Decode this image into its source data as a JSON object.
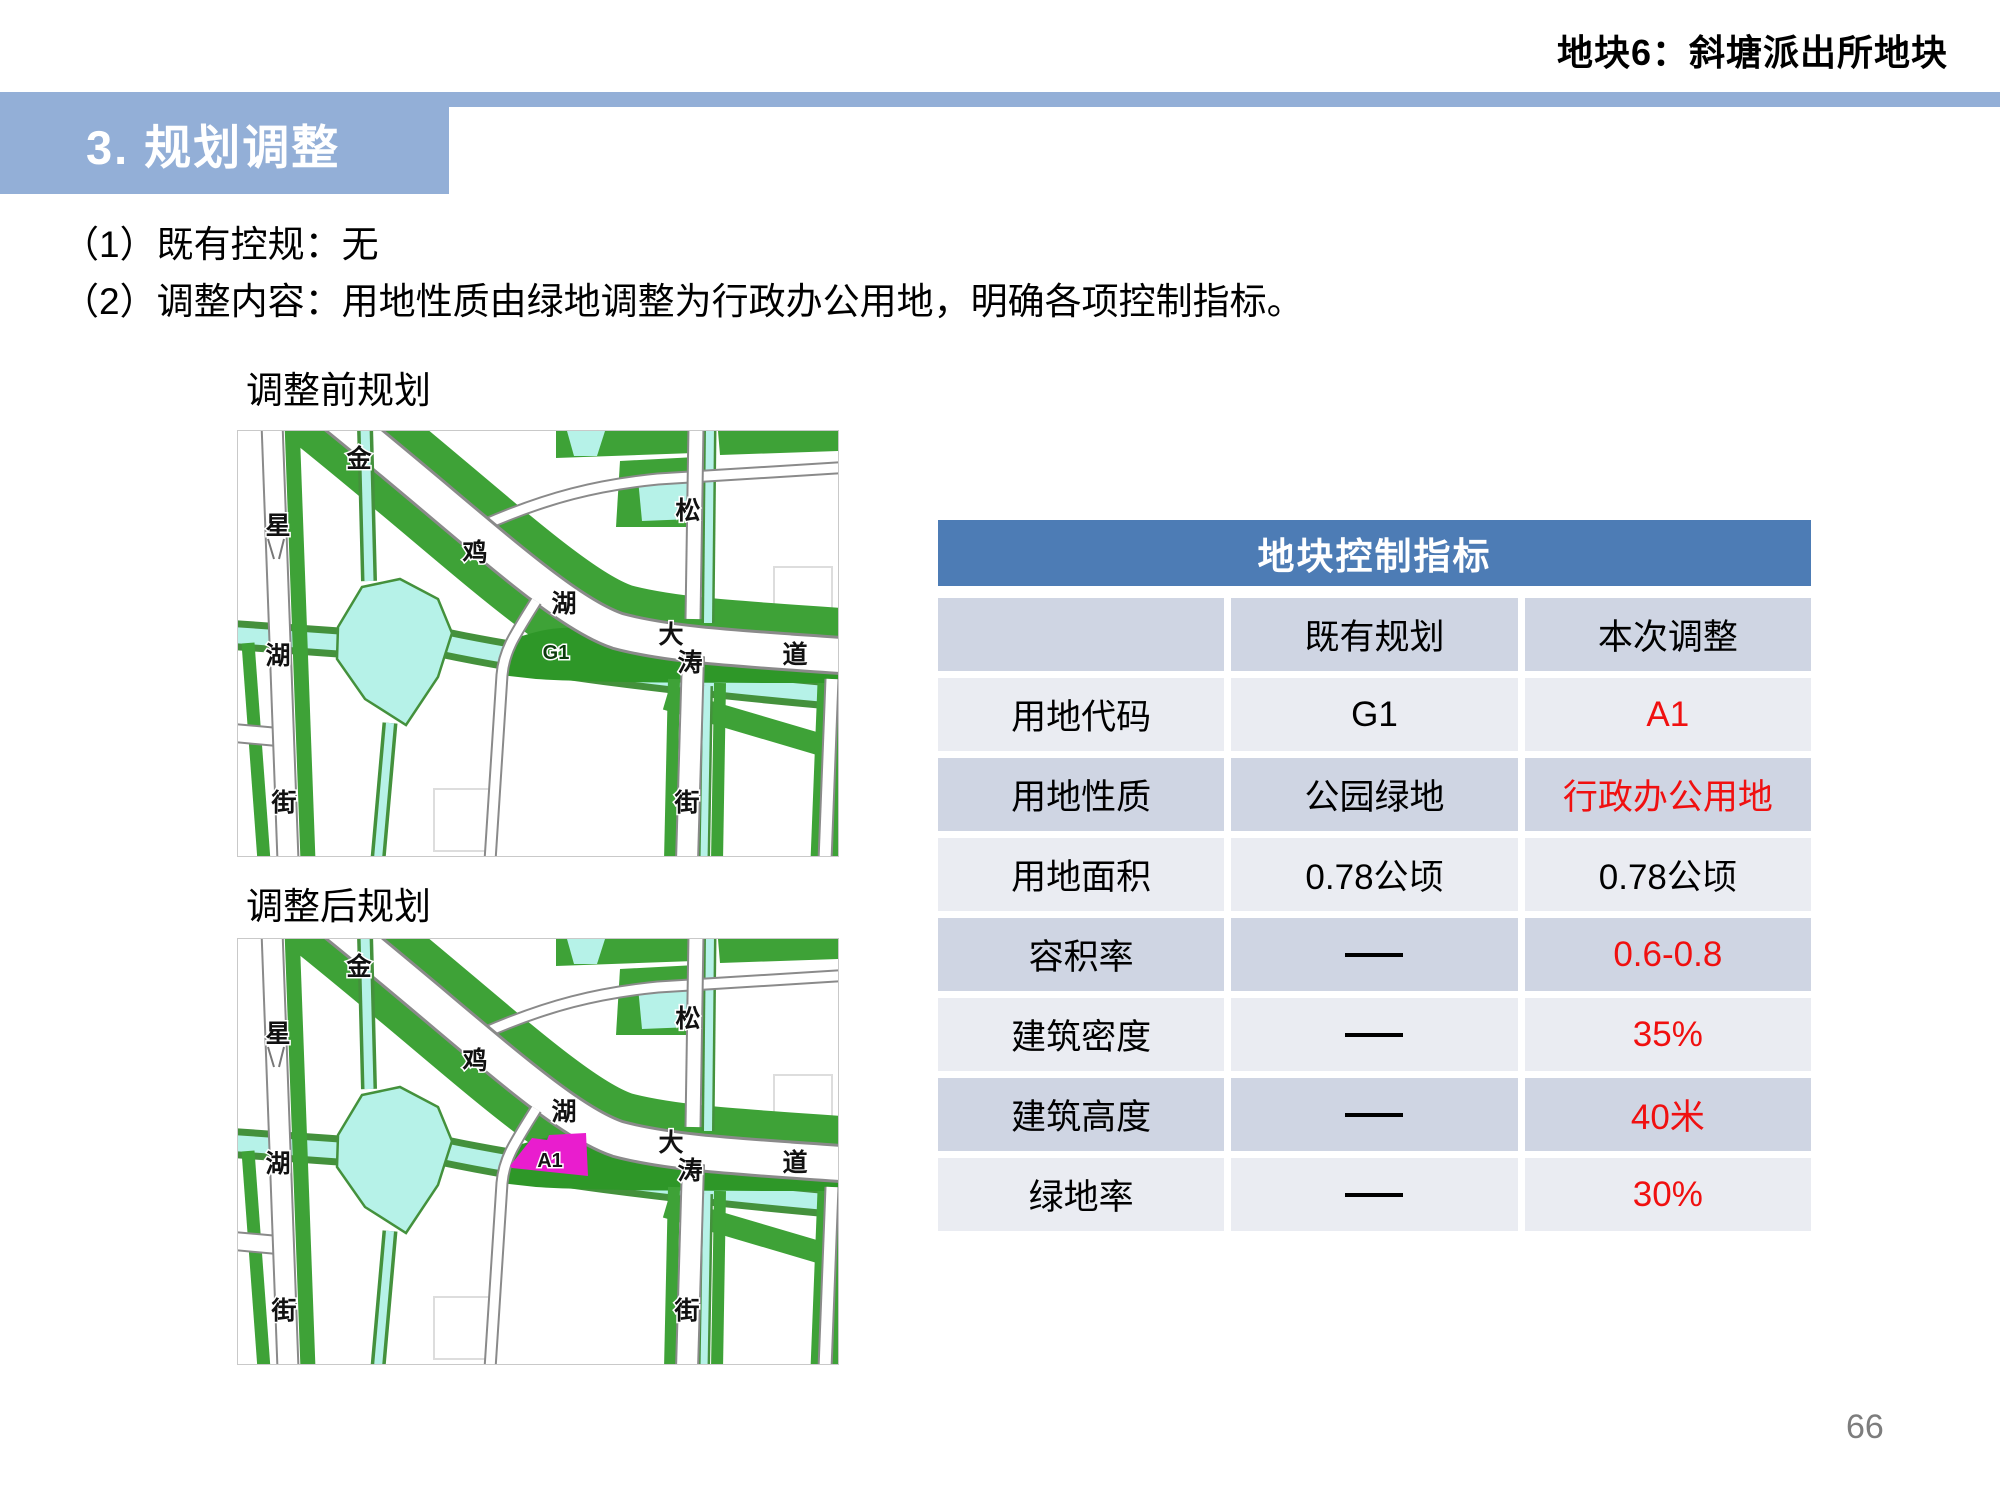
{
  "page": {
    "corner_header": "地块6：斜塘派出所地块",
    "section_title": "3. 规划调整",
    "paragraphs": [
      "（1）既有控规：无",
      "（2）调整内容：用地性质由绿地调整为行政办公用地，明确各项控制指标。"
    ],
    "page_number": "66"
  },
  "maps": {
    "before_label": "调整前规划",
    "after_label": "调整后规划",
    "avenue_chars": [
      "金",
      "鸡",
      "湖",
      "大",
      "道"
    ],
    "left_street_chars": [
      "星",
      "湖",
      "街"
    ],
    "right_street_chars": [
      "松",
      "涛",
      "街"
    ],
    "parcel_before": "G1",
    "parcel_after": "A1"
  },
  "table": {
    "title": "地块控制指标",
    "columns": [
      "",
      "既有规划",
      "本次调整"
    ],
    "rows": [
      {
        "label": "用地代码",
        "before": "G1",
        "after": "A1",
        "after_red": true
      },
      {
        "label": "用地性质",
        "before": "公园绿地",
        "after": "行政办公用地",
        "after_red": true
      },
      {
        "label": "用地面积",
        "before": "0.78公顷",
        "after": "0.78公顷",
        "after_red": false
      },
      {
        "label": "容积率",
        "before": "——",
        "after": "0.6-0.8",
        "after_red": true
      },
      {
        "label": "建筑密度",
        "before": "——",
        "after": "35%",
        "after_red": true
      },
      {
        "label": "建筑高度",
        "before": "——",
        "after": "40米",
        "after_red": true
      },
      {
        "label": "绿地率",
        "before": "——",
        "after": "30%",
        "after_red": true
      }
    ]
  },
  "colors": {
    "band_blue": "#93afd7",
    "table_header_blue": "#4d7cb5",
    "row_dark": "#cfd5e3",
    "row_light": "#eaecf2",
    "highlight_red": "#f01010",
    "map_green": "#3ea237",
    "map_parcel_green": "#2e9728",
    "map_water": "#b6f2e8",
    "map_water_edge": "#44913c",
    "map_parcel_magenta": "#e91dce",
    "map_road_edge": "#8a8a8a",
    "page_number_gray": "#7d7d7d"
  }
}
